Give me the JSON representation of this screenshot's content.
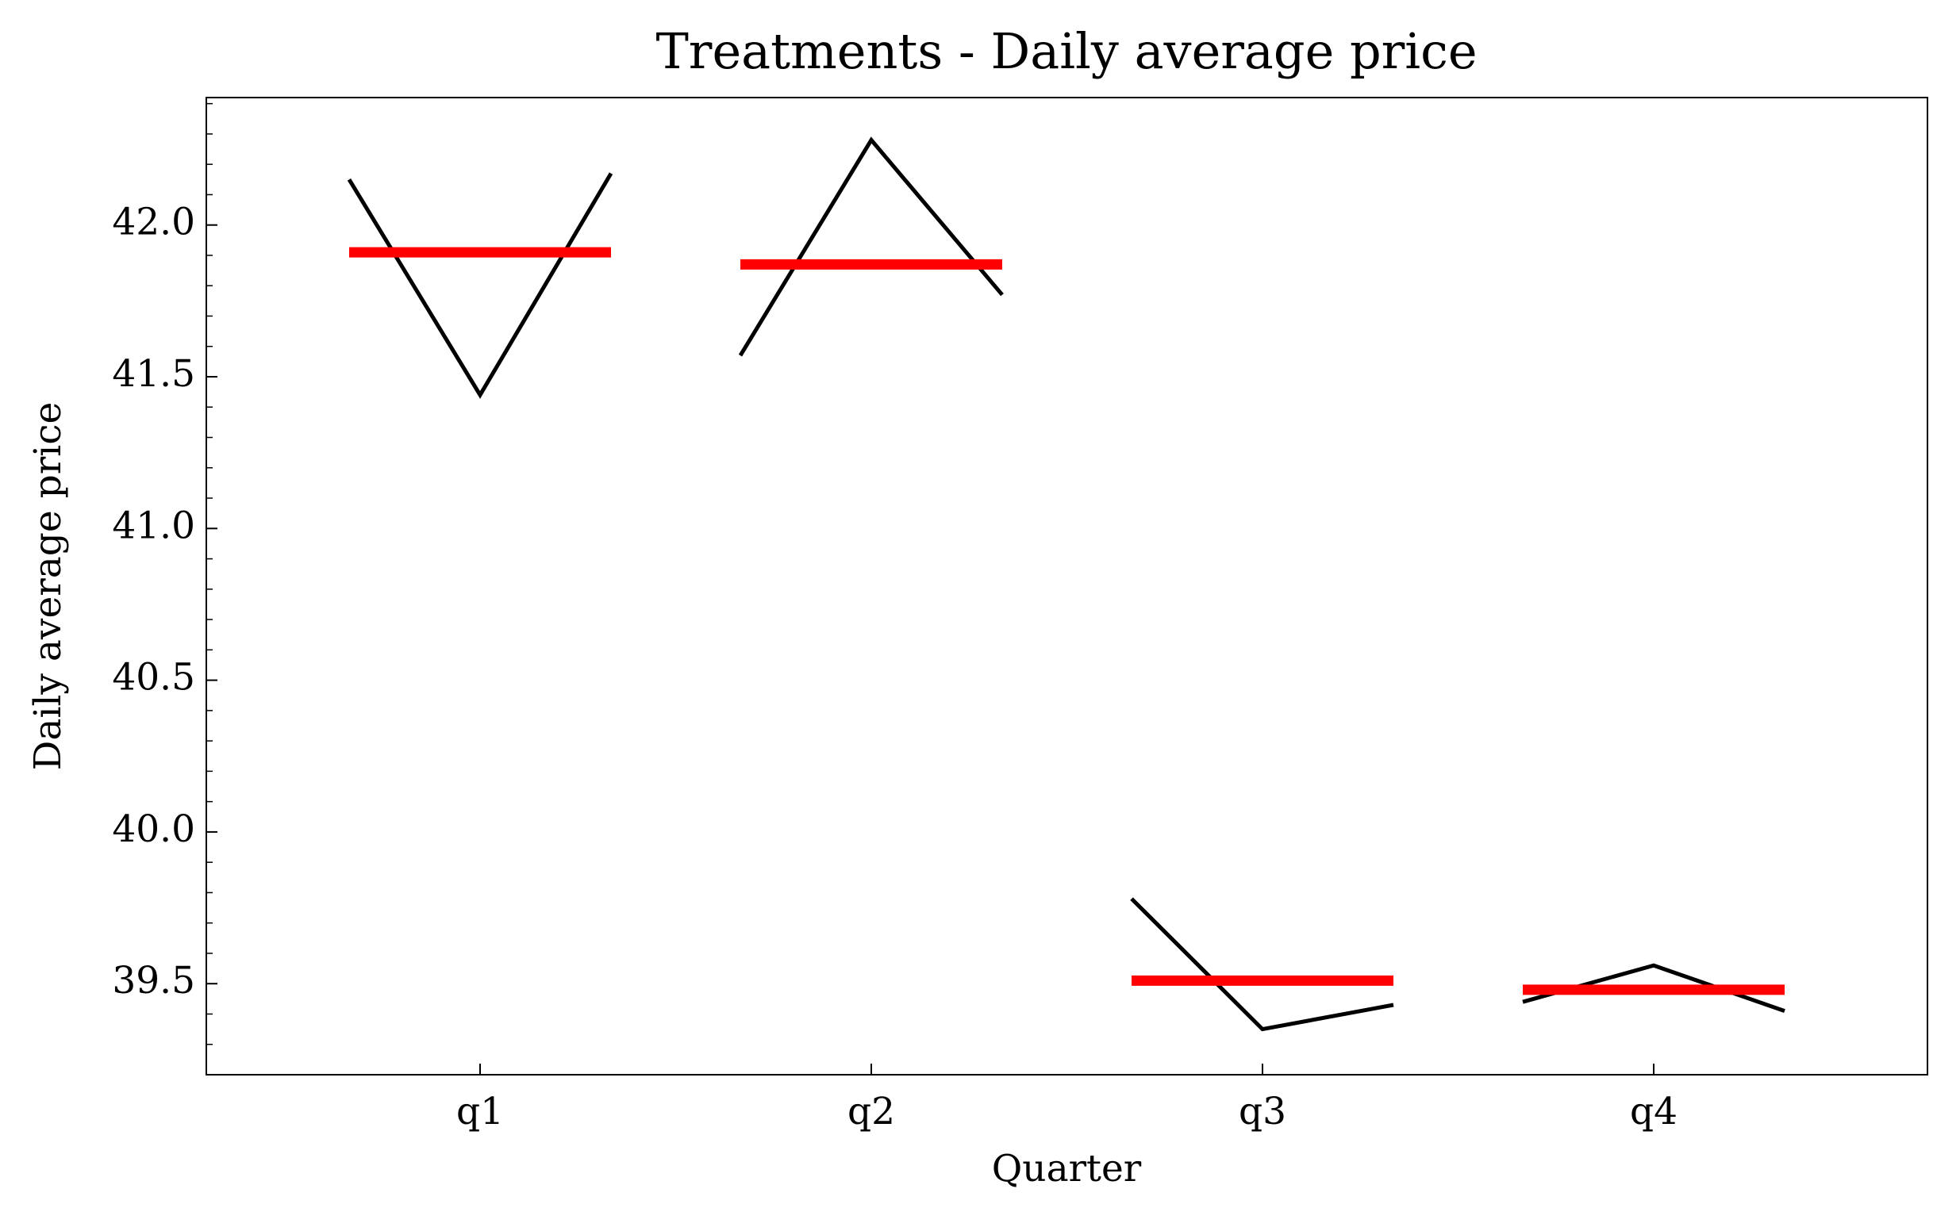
{
  "chart_data": {
    "type": "quarter",
    "title": "Treatments - Daily average price",
    "xlabel": "Quarter",
    "ylabel": "Daily average price",
    "categories": [
      "q1",
      "q2",
      "q3",
      "q4"
    ],
    "values": [
      [
        42.15,
        41.44,
        42.17
      ],
      [
        41.57,
        42.28,
        41.77
      ],
      [
        39.78,
        39.35,
        39.43
      ],
      [
        39.44,
        39.56,
        39.41
      ]
    ],
    "means": [
      41.91,
      41.87,
      39.51,
      39.48
    ],
    "line_color": "#000000",
    "mean_color": "#ff0000",
    "ylim": [
      39.2,
      42.42
    ],
    "yticks": [
      {
        "value": 39.5,
        "label": "39.5"
      },
      {
        "value": 40,
        "label": "40.0"
      },
      {
        "value": 40.5,
        "label": "40.5"
      },
      {
        "value": 41,
        "label": "41.0"
      },
      {
        "value": 41.5,
        "label": "41.5"
      },
      {
        "value": 42,
        "label": "42.0"
      }
    ],
    "yminorticks": [
      39.3,
      39.4,
      39.6,
      39.7,
      39.8,
      39.9,
      40.1,
      40.2,
      40.3,
      40.4,
      40.6,
      40.7,
      40.8,
      40.9,
      41.1,
      41.2,
      41.3,
      41.4,
      41.6,
      41.7,
      41.8,
      41.9,
      42.1,
      42.2,
      42.3,
      42.4
    ]
  }
}
